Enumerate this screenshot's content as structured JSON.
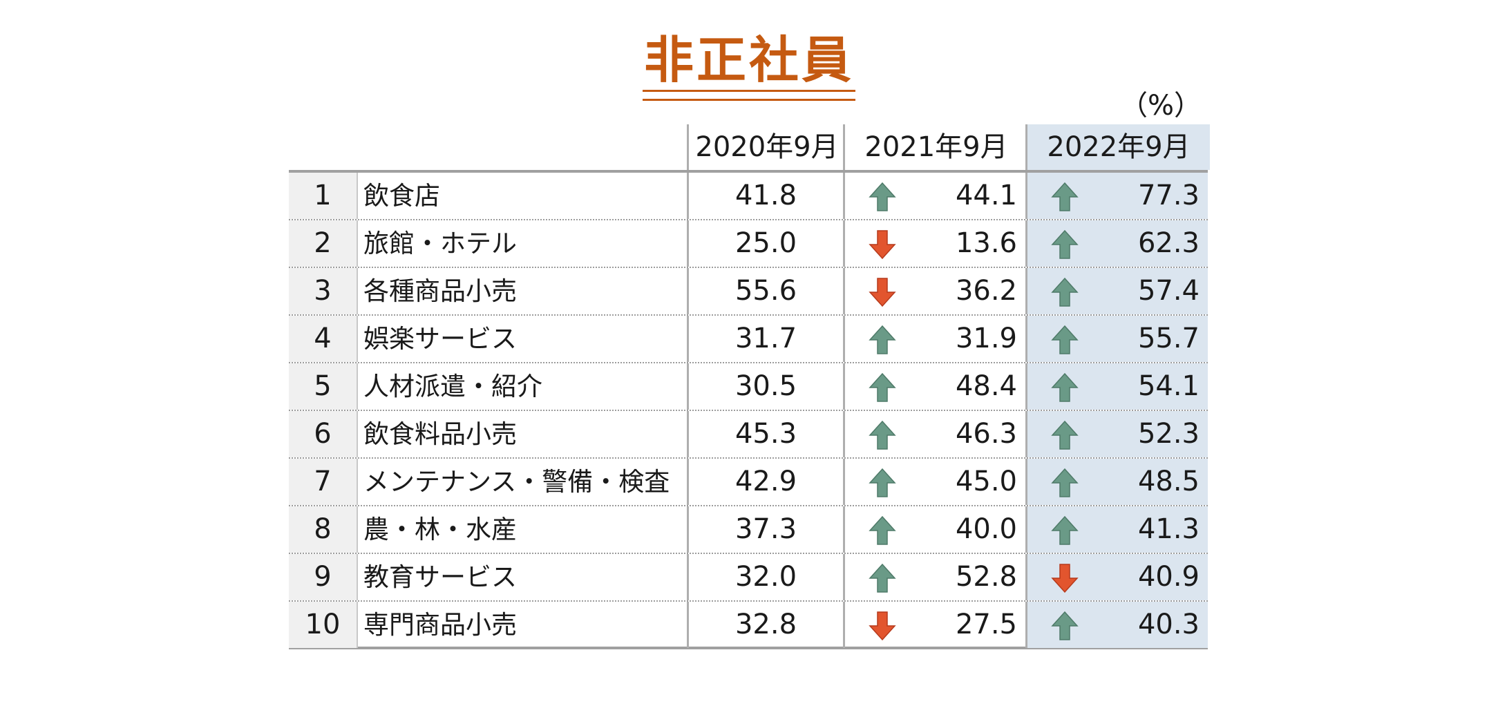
{
  "title": "非正社員",
  "unit": "（%）",
  "colors": {
    "title": "#c55a11",
    "up": "#6a9a87",
    "down": "#e2552e",
    "highlight": "#dbe5ef"
  },
  "chart_data": {
    "type": "table",
    "columns": [
      "2020年9月",
      "2021年9月",
      "2022年9月"
    ],
    "rows": [
      {
        "rank": "1",
        "name": "飲食店",
        "v2020": "41.8",
        "v2021": "44.1",
        "t2021": "up",
        "v2022": "77.3",
        "t2022": "up"
      },
      {
        "rank": "2",
        "name": "旅館・ホテル",
        "v2020": "25.0",
        "v2021": "13.6",
        "t2021": "down",
        "v2022": "62.3",
        "t2022": "up"
      },
      {
        "rank": "3",
        "name": "各種商品小売",
        "v2020": "55.6",
        "v2021": "36.2",
        "t2021": "down",
        "v2022": "57.4",
        "t2022": "up"
      },
      {
        "rank": "4",
        "name": "娯楽サービス",
        "v2020": "31.7",
        "v2021": "31.9",
        "t2021": "up",
        "v2022": "55.7",
        "t2022": "up"
      },
      {
        "rank": "5",
        "name": "人材派遣・紹介",
        "v2020": "30.5",
        "v2021": "48.4",
        "t2021": "up",
        "v2022": "54.1",
        "t2022": "up"
      },
      {
        "rank": "6",
        "name": "飲食料品小売",
        "v2020": "45.3",
        "v2021": "46.3",
        "t2021": "up",
        "v2022": "52.3",
        "t2022": "up"
      },
      {
        "rank": "7",
        "name": "メンテナンス・警備・検査",
        "v2020": "42.9",
        "v2021": "45.0",
        "t2021": "up",
        "v2022": "48.5",
        "t2022": "up"
      },
      {
        "rank": "8",
        "name": "農・林・水産",
        "v2020": "37.3",
        "v2021": "40.0",
        "t2021": "up",
        "v2022": "41.3",
        "t2022": "up"
      },
      {
        "rank": "9",
        "name": "教育サービス",
        "v2020": "32.0",
        "v2021": "52.8",
        "t2021": "up",
        "v2022": "40.9",
        "t2022": "down"
      },
      {
        "rank": "10",
        "name": "専門商品小売",
        "v2020": "32.8",
        "v2021": "27.5",
        "t2021": "down",
        "v2022": "40.3",
        "t2022": "up"
      }
    ]
  }
}
